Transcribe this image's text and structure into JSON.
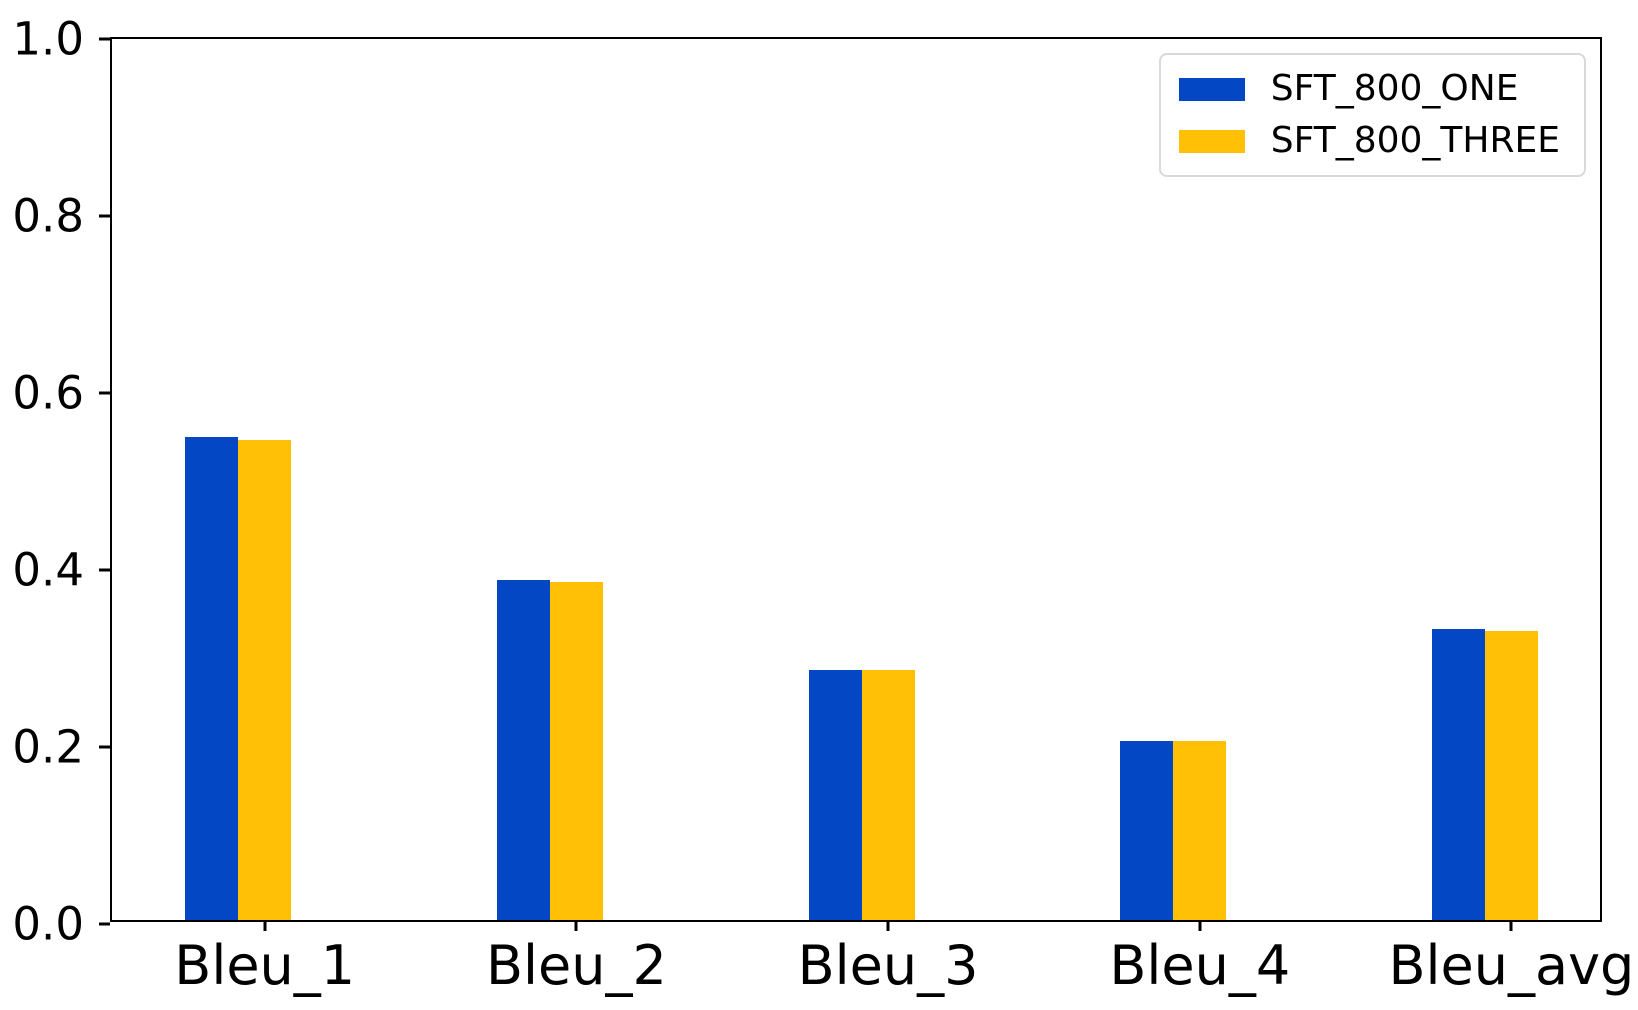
{
  "figure": {
    "background": "#ffffff",
    "axis_color": "#000000",
    "legend_border_color": "#d9d9d9"
  },
  "chart_data": {
    "type": "bar",
    "title": "",
    "xlabel": "",
    "ylabel": "",
    "categories": [
      "Bleu_1",
      "Bleu_2",
      "Bleu_3",
      "Bleu_4",
      "Bleu_avg"
    ],
    "series": [
      {
        "name": "SFT_800_ONE",
        "color": "#0447c4",
        "center_offset": -0.17,
        "values": [
          0.546,
          0.384,
          0.283,
          0.202,
          0.329
        ]
      },
      {
        "name": "SFT_800_THREE",
        "color": "#ffc005",
        "center_offset": 0.0,
        "values": [
          0.542,
          0.382,
          0.282,
          0.202,
          0.327
        ]
      }
    ],
    "bar_width": 0.17,
    "xlim": [
      -0.49,
      4.297
    ],
    "ylim": [
      0.0,
      1.0
    ],
    "yticks": [
      "0.0",
      "0.2",
      "0.4",
      "0.6",
      "0.8",
      "1.0"
    ],
    "grid": false,
    "legend_position": "upper right"
  }
}
